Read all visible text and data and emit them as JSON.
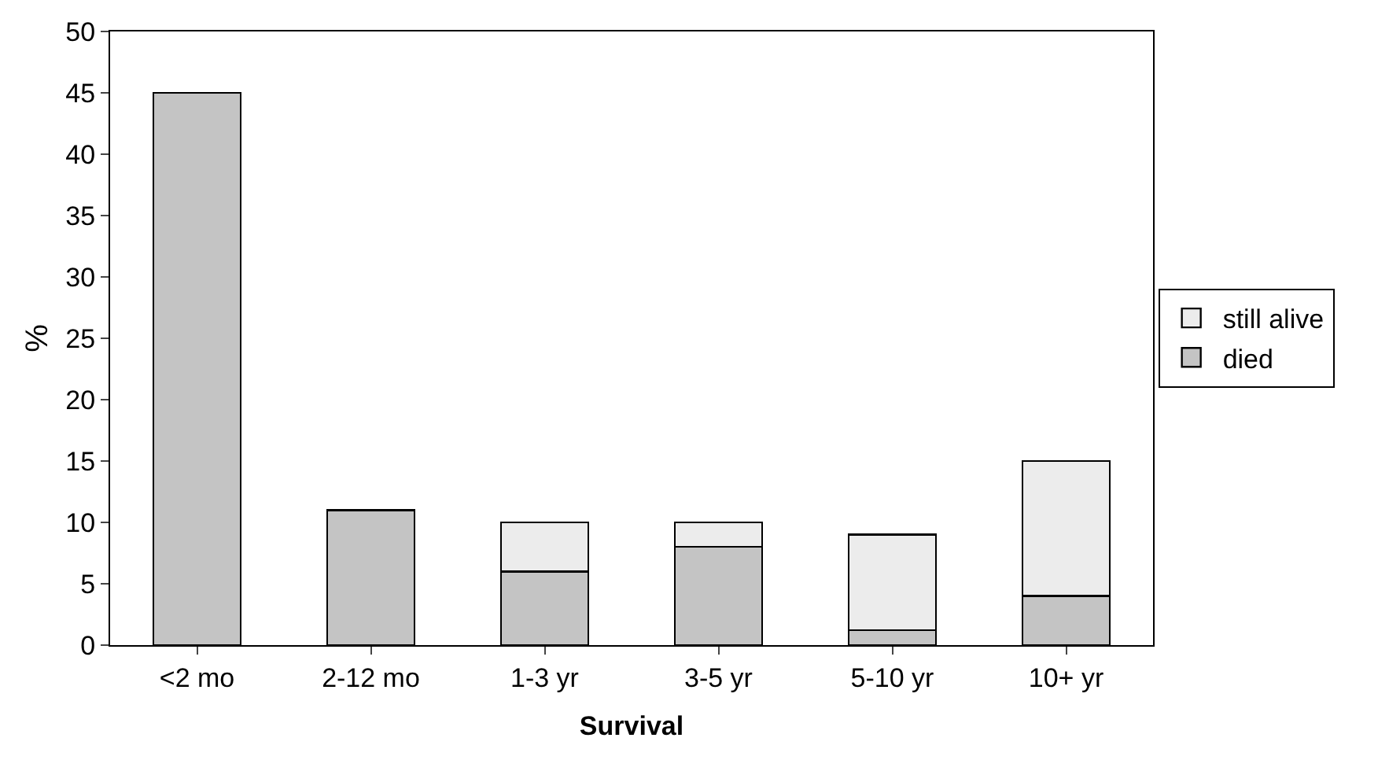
{
  "chart_data": {
    "type": "bar",
    "stacked": true,
    "xlabel": "Survival",
    "ylabel": "%",
    "categories": [
      "<2 mo",
      "2-12 mo",
      "1-3 yr",
      "3-5 yr",
      "5-10 yr",
      "10+ yr"
    ],
    "series": [
      {
        "name": "died",
        "color": "#c4c4c4",
        "values": [
          45,
          11,
          6,
          8,
          1.2,
          4
        ]
      },
      {
        "name": "still alive",
        "color": "#ececec",
        "values": [
          null,
          null,
          4,
          2,
          7.8,
          11
        ]
      }
    ],
    "ylim": [
      0,
      50
    ],
    "yticks": [
      0,
      5,
      10,
      15,
      20,
      25,
      30,
      35,
      40,
      45,
      50
    ],
    "legend": "right"
  }
}
